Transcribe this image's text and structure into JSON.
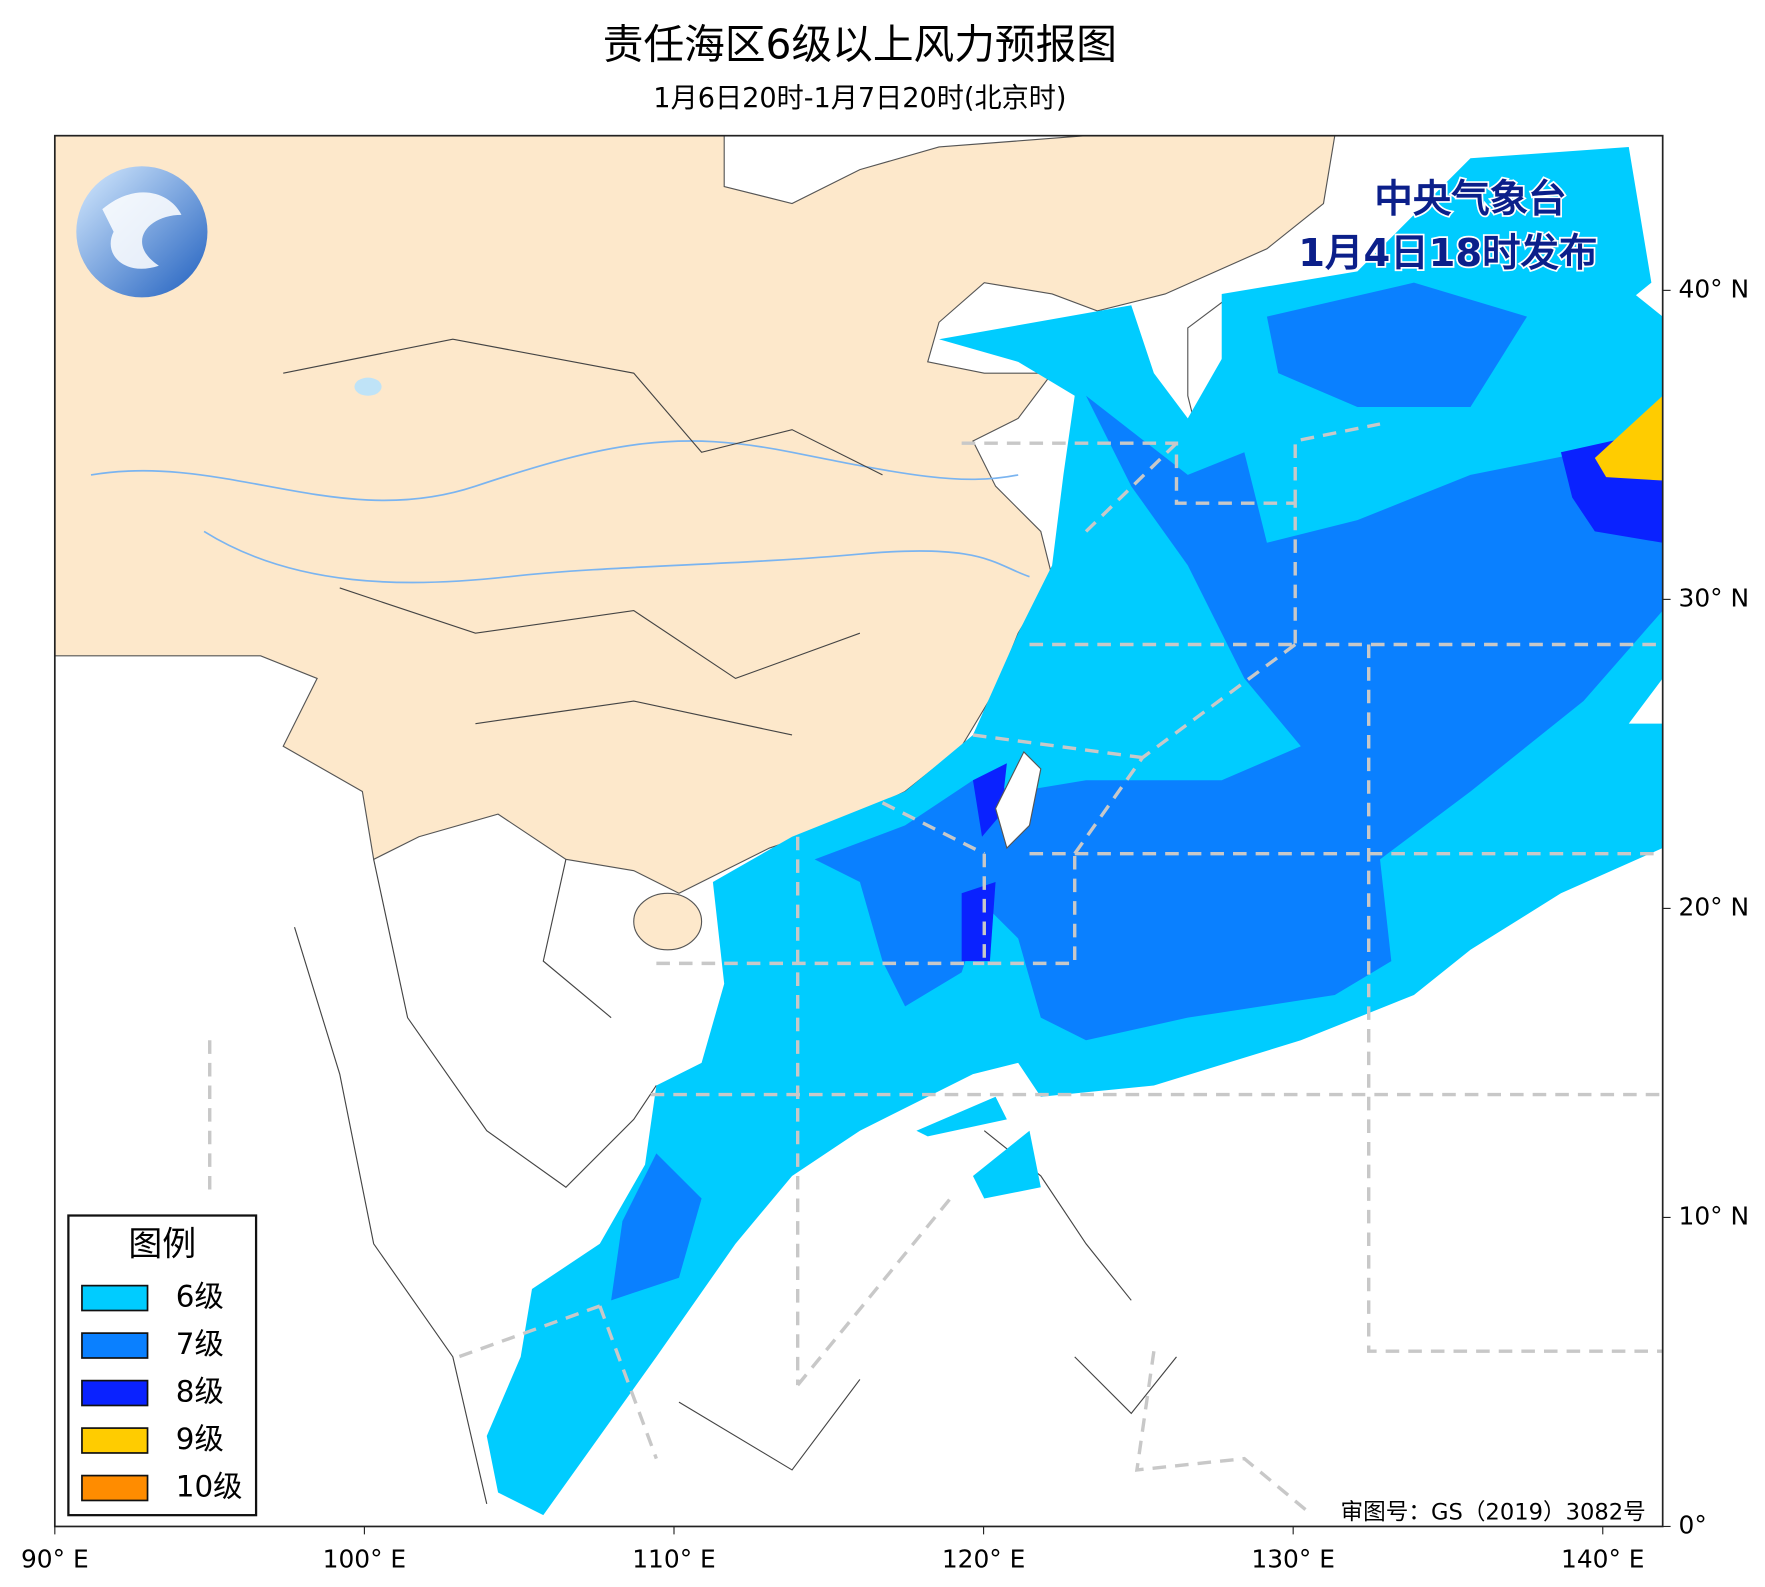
{
  "header": {
    "title": "责任海区6级以上风力预报图",
    "subtitle": "1月6日20时-1月7日20时(北京时)"
  },
  "issuer": {
    "name": "中央气象台",
    "time": "1月4日18时发布"
  },
  "map": {
    "lon_ticks": [
      {
        "value": 90,
        "label": "90° E"
      },
      {
        "value": 100,
        "label": "100° E"
      },
      {
        "value": 110,
        "label": "110° E"
      },
      {
        "value": 120,
        "label": "120° E"
      },
      {
        "value": 130,
        "label": "130° E"
      },
      {
        "value": 140,
        "label": "140° E"
      }
    ],
    "lat_ticks": [
      {
        "value": 0,
        "label": "0°"
      },
      {
        "value": 10,
        "label": "10° N"
      },
      {
        "value": 20,
        "label": "20° N"
      },
      {
        "value": 30,
        "label": "30° N"
      },
      {
        "value": 40,
        "label": "40° N"
      }
    ]
  },
  "legend": {
    "title": "图例",
    "items": [
      {
        "label": "6级",
        "color": "#00ccff"
      },
      {
        "label": "7级",
        "color": "#0a80ff"
      },
      {
        "label": "8级",
        "color": "#0a22ff"
      },
      {
        "label": "9级",
        "color": "#ffcc00"
      },
      {
        "label": "10级",
        "color": "#ff8c00"
      }
    ]
  },
  "footer": {
    "approval": "审图号：GS（2019）3082号"
  }
}
